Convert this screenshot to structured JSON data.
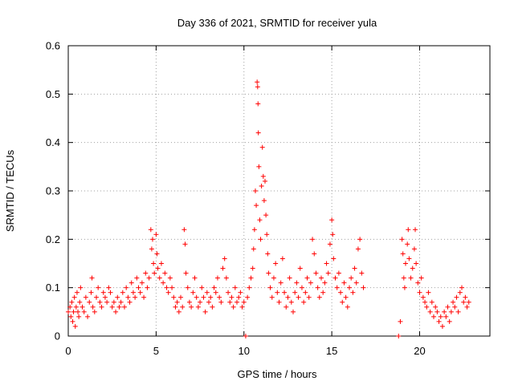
{
  "chart_data": {
    "type": "scatter",
    "title": "Day 336 of 2021, SRMTID for receiver yula",
    "xlabel": "GPS time / hours",
    "ylabel": "SRMTID / TECUs",
    "xlim": [
      0,
      24
    ],
    "ylim": [
      0,
      0.6
    ],
    "x_ticks": [
      0,
      5,
      10,
      15,
      20
    ],
    "x_tick_labels": [
      "0",
      "5",
      "10",
      "15",
      "20"
    ],
    "y_ticks": [
      0,
      0.1,
      0.2,
      0.3,
      0.4,
      0.5,
      0.6
    ],
    "y_tick_labels": [
      "0",
      "0.1",
      "0.2",
      "0.3",
      "0.4",
      "0.5",
      "0.6"
    ],
    "grid": true,
    "marker": "plus",
    "color": "#ff0000",
    "series": [
      {
        "name": "SRMTID",
        "points": [
          [
            0.0,
            0.05
          ],
          [
            0.1,
            0.06
          ],
          [
            0.15,
            0.04
          ],
          [
            0.2,
            0.07
          ],
          [
            0.25,
            0.03
          ],
          [
            0.3,
            0.05
          ],
          [
            0.35,
            0.08
          ],
          [
            0.4,
            0.02
          ],
          [
            0.45,
            0.06
          ],
          [
            0.5,
            0.09
          ],
          [
            0.55,
            0.05
          ],
          [
            0.6,
            0.04
          ],
          [
            0.65,
            0.07
          ],
          [
            0.7,
            0.1
          ],
          [
            0.8,
            0.06
          ],
          [
            0.9,
            0.05
          ],
          [
            1.0,
            0.08
          ],
          [
            1.1,
            0.04
          ],
          [
            1.2,
            0.07
          ],
          [
            1.3,
            0.09
          ],
          [
            1.35,
            0.12
          ],
          [
            1.4,
            0.06
          ],
          [
            1.5,
            0.05
          ],
          [
            1.6,
            0.08
          ],
          [
            1.7,
            0.1
          ],
          [
            1.8,
            0.07
          ],
          [
            1.9,
            0.06
          ],
          [
            2.0,
            0.09
          ],
          [
            2.1,
            0.08
          ],
          [
            2.2,
            0.07
          ],
          [
            2.3,
            0.1
          ],
          [
            2.4,
            0.09
          ],
          [
            2.5,
            0.06
          ],
          [
            2.6,
            0.07
          ],
          [
            2.7,
            0.05
          ],
          [
            2.8,
            0.08
          ],
          [
            2.9,
            0.06
          ],
          [
            3.0,
            0.07
          ],
          [
            3.1,
            0.09
          ],
          [
            3.2,
            0.06
          ],
          [
            3.3,
            0.1
          ],
          [
            3.4,
            0.08
          ],
          [
            3.5,
            0.07
          ],
          [
            3.6,
            0.11
          ],
          [
            3.7,
            0.09
          ],
          [
            3.8,
            0.08
          ],
          [
            3.9,
            0.12
          ],
          [
            4.0,
            0.1
          ],
          [
            4.1,
            0.09
          ],
          [
            4.2,
            0.11
          ],
          [
            4.3,
            0.08
          ],
          [
            4.4,
            0.13
          ],
          [
            4.5,
            0.1
          ],
          [
            4.6,
            0.12
          ],
          [
            4.7,
            0.22
          ],
          [
            4.75,
            0.18
          ],
          [
            4.8,
            0.2
          ],
          [
            4.85,
            0.15
          ],
          [
            4.9,
            0.13
          ],
          [
            5.0,
            0.21
          ],
          [
            5.05,
            0.17
          ],
          [
            5.1,
            0.14
          ],
          [
            5.2,
            0.12
          ],
          [
            5.3,
            0.15
          ],
          [
            5.4,
            0.11
          ],
          [
            5.5,
            0.13
          ],
          [
            5.6,
            0.1
          ],
          [
            5.7,
            0.09
          ],
          [
            5.8,
            0.12
          ],
          [
            5.9,
            0.1
          ],
          [
            6.0,
            0.08
          ],
          [
            6.1,
            0.06
          ],
          [
            6.2,
            0.07
          ],
          [
            6.3,
            0.05
          ],
          [
            6.4,
            0.08
          ],
          [
            6.5,
            0.06
          ],
          [
            6.6,
            0.22
          ],
          [
            6.65,
            0.19
          ],
          [
            6.7,
            0.13
          ],
          [
            6.8,
            0.1
          ],
          [
            6.9,
            0.07
          ],
          [
            7.0,
            0.06
          ],
          [
            7.1,
            0.09
          ],
          [
            7.2,
            0.12
          ],
          [
            7.3,
            0.08
          ],
          [
            7.4,
            0.06
          ],
          [
            7.5,
            0.07
          ],
          [
            7.6,
            0.1
          ],
          [
            7.7,
            0.08
          ],
          [
            7.8,
            0.05
          ],
          [
            7.9,
            0.09
          ],
          [
            8.0,
            0.07
          ],
          [
            8.1,
            0.08
          ],
          [
            8.2,
            0.06
          ],
          [
            8.3,
            0.1
          ],
          [
            8.4,
            0.09
          ],
          [
            8.5,
            0.12
          ],
          [
            8.6,
            0.08
          ],
          [
            8.7,
            0.07
          ],
          [
            8.8,
            0.14
          ],
          [
            8.9,
            0.16
          ],
          [
            9.0,
            0.12
          ],
          [
            9.1,
            0.09
          ],
          [
            9.2,
            0.07
          ],
          [
            9.3,
            0.08
          ],
          [
            9.4,
            0.06
          ],
          [
            9.5,
            0.1
          ],
          [
            9.6,
            0.07
          ],
          [
            9.7,
            0.08
          ],
          [
            9.8,
            0.09
          ],
          [
            9.9,
            0.06
          ],
          [
            10.0,
            0.07
          ],
          [
            10.1,
            0.0
          ],
          [
            10.2,
            0.08
          ],
          [
            10.3,
            0.1
          ],
          [
            10.4,
            0.12
          ],
          [
            10.5,
            0.14
          ],
          [
            10.55,
            0.18
          ],
          [
            10.6,
            0.22
          ],
          [
            10.65,
            0.3
          ],
          [
            10.7,
            0.27
          ],
          [
            10.75,
            0.525
          ],
          [
            10.78,
            0.515
          ],
          [
            10.8,
            0.48
          ],
          [
            10.82,
            0.42
          ],
          [
            10.85,
            0.35
          ],
          [
            10.9,
            0.24
          ],
          [
            10.95,
            0.2
          ],
          [
            11.0,
            0.31
          ],
          [
            11.05,
            0.39
          ],
          [
            11.1,
            0.33
          ],
          [
            11.15,
            0.28
          ],
          [
            11.2,
            0.32
          ],
          [
            11.25,
            0.25
          ],
          [
            11.3,
            0.21
          ],
          [
            11.35,
            0.17
          ],
          [
            11.4,
            0.13
          ],
          [
            11.5,
            0.1
          ],
          [
            11.6,
            0.08
          ],
          [
            11.7,
            0.12
          ],
          [
            11.8,
            0.15
          ],
          [
            11.9,
            0.09
          ],
          [
            12.0,
            0.07
          ],
          [
            12.1,
            0.11
          ],
          [
            12.2,
            0.16
          ],
          [
            12.3,
            0.09
          ],
          [
            12.4,
            0.06
          ],
          [
            12.5,
            0.08
          ],
          [
            12.6,
            0.12
          ],
          [
            12.7,
            0.07
          ],
          [
            12.8,
            0.05
          ],
          [
            12.9,
            0.09
          ],
          [
            13.0,
            0.11
          ],
          [
            13.1,
            0.08
          ],
          [
            13.2,
            0.14
          ],
          [
            13.3,
            0.1
          ],
          [
            13.4,
            0.07
          ],
          [
            13.5,
            0.09
          ],
          [
            13.6,
            0.12
          ],
          [
            13.7,
            0.08
          ],
          [
            13.8,
            0.11
          ],
          [
            13.9,
            0.2
          ],
          [
            14.0,
            0.17
          ],
          [
            14.1,
            0.13
          ],
          [
            14.2,
            0.1
          ],
          [
            14.3,
            0.08
          ],
          [
            14.4,
            0.12
          ],
          [
            14.5,
            0.09
          ],
          [
            14.6,
            0.11
          ],
          [
            14.7,
            0.15
          ],
          [
            14.8,
            0.13
          ],
          [
            14.9,
            0.19
          ],
          [
            15.0,
            0.24
          ],
          [
            15.05,
            0.21
          ],
          [
            15.1,
            0.16
          ],
          [
            15.2,
            0.12
          ],
          [
            15.3,
            0.1
          ],
          [
            15.4,
            0.13
          ],
          [
            15.5,
            0.09
          ],
          [
            15.6,
            0.07
          ],
          [
            15.7,
            0.11
          ],
          [
            15.8,
            0.08
          ],
          [
            15.9,
            0.06
          ],
          [
            16.0,
            0.1
          ],
          [
            16.1,
            0.12
          ],
          [
            16.2,
            0.09
          ],
          [
            16.3,
            0.14
          ],
          [
            16.4,
            0.11
          ],
          [
            16.5,
            0.18
          ],
          [
            16.6,
            0.2
          ],
          [
            16.7,
            0.13
          ],
          [
            16.8,
            0.1
          ],
          [
            18.8,
            0.0
          ],
          [
            18.9,
            0.03
          ],
          [
            19.0,
            0.2
          ],
          [
            19.05,
            0.17
          ],
          [
            19.1,
            0.12
          ],
          [
            19.15,
            0.1
          ],
          [
            19.2,
            0.15
          ],
          [
            19.3,
            0.19
          ],
          [
            19.35,
            0.22
          ],
          [
            19.4,
            0.16
          ],
          [
            19.5,
            0.12
          ],
          [
            19.6,
            0.14
          ],
          [
            19.7,
            0.18
          ],
          [
            19.75,
            0.22
          ],
          [
            19.8,
            0.15
          ],
          [
            19.9,
            0.11
          ],
          [
            20.0,
            0.09
          ],
          [
            20.1,
            0.12
          ],
          [
            20.2,
            0.08
          ],
          [
            20.3,
            0.07
          ],
          [
            20.4,
            0.06
          ],
          [
            20.5,
            0.09
          ],
          [
            20.6,
            0.05
          ],
          [
            20.7,
            0.07
          ],
          [
            20.8,
            0.04
          ],
          [
            20.9,
            0.06
          ],
          [
            21.0,
            0.05
          ],
          [
            21.1,
            0.03
          ],
          [
            21.2,
            0.04
          ],
          [
            21.3,
            0.02
          ],
          [
            21.4,
            0.05
          ],
          [
            21.5,
            0.04
          ],
          [
            21.6,
            0.06
          ],
          [
            21.7,
            0.03
          ],
          [
            21.8,
            0.05
          ],
          [
            21.9,
            0.07
          ],
          [
            22.0,
            0.06
          ],
          [
            22.1,
            0.08
          ],
          [
            22.2,
            0.05
          ],
          [
            22.3,
            0.09
          ],
          [
            22.4,
            0.1
          ],
          [
            22.5,
            0.07
          ],
          [
            22.6,
            0.08
          ],
          [
            22.7,
            0.06
          ],
          [
            22.8,
            0.07
          ]
        ]
      }
    ]
  }
}
